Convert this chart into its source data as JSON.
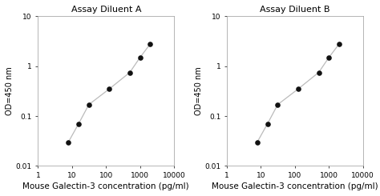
{
  "panel_A": {
    "title": "Assay Diluent A",
    "x": [
      7.8,
      15.6,
      31.25,
      125,
      500,
      1000,
      2000
    ],
    "y": [
      0.03,
      0.07,
      0.17,
      0.35,
      0.75,
      1.5,
      2.8
    ]
  },
  "panel_B": {
    "title": "Assay Diluent B",
    "x": [
      7.8,
      15.6,
      31.25,
      125,
      500,
      1000,
      2000
    ],
    "y": [
      0.03,
      0.07,
      0.17,
      0.35,
      0.75,
      1.5,
      2.8
    ]
  },
  "xlabel": "Mouse Galectin-3 concentration (pg/ml)",
  "ylabel": "OD=450 nm",
  "xlim": [
    1,
    10000
  ],
  "ylim": [
    0.01,
    10
  ],
  "xticks": [
    1,
    10,
    100,
    1000,
    10000
  ],
  "xtick_labels": [
    "1",
    "10",
    "100",
    "1000",
    "10000"
  ],
  "yticks": [
    0.01,
    0.1,
    1,
    10
  ],
  "ytick_labels": [
    "0.01",
    "0.1",
    "1",
    "10"
  ],
  "line_color": "#bbbbbb",
  "dot_color": "#111111",
  "dot_size": 14,
  "title_fontsize": 8,
  "ylabel_fontsize": 7,
  "tick_fontsize": 6.5,
  "xlabel_fontsize": 7.5
}
